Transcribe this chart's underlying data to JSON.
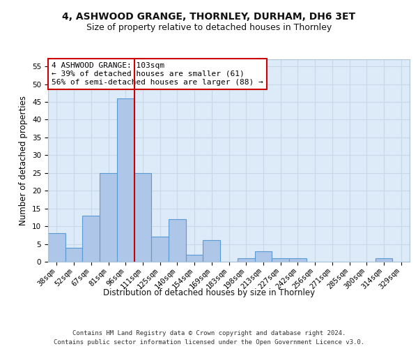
{
  "title1": "4, ASHWOOD GRANGE, THORNLEY, DURHAM, DH6 3ET",
  "title2": "Size of property relative to detached houses in Thornley",
  "xlabel": "Distribution of detached houses by size in Thornley",
  "ylabel": "Number of detached properties",
  "categories": [
    "38sqm",
    "52sqm",
    "67sqm",
    "81sqm",
    "96sqm",
    "111sqm",
    "125sqm",
    "140sqm",
    "154sqm",
    "169sqm",
    "183sqm",
    "198sqm",
    "213sqm",
    "227sqm",
    "242sqm",
    "256sqm",
    "271sqm",
    "285sqm",
    "300sqm",
    "314sqm",
    "329sqm"
  ],
  "values": [
    8,
    4,
    13,
    25,
    46,
    25,
    7,
    12,
    2,
    6,
    0,
    1,
    3,
    1,
    1,
    0,
    0,
    0,
    0,
    1,
    0
  ],
  "bar_color": "#aec6e8",
  "bar_edge_color": "#5b9bd5",
  "grid_color": "#c8d8e8",
  "background_color": "#ddeaf7",
  "vline_x": 4.5,
  "vline_color": "#cc0000",
  "annotation_text": "4 ASHWOOD GRANGE: 103sqm\n← 39% of detached houses are smaller (61)\n56% of semi-detached houses are larger (88) →",
  "annotation_box_color": "#ffffff",
  "annotation_box_edge": "#cc0000",
  "ylim": [
    0,
    57
  ],
  "yticks": [
    0,
    5,
    10,
    15,
    20,
    25,
    30,
    35,
    40,
    45,
    50,
    55
  ],
  "footer_line1": "Contains HM Land Registry data © Crown copyright and database right 2024.",
  "footer_line2": "Contains public sector information licensed under the Open Government Licence v3.0.",
  "title1_fontsize": 10,
  "title2_fontsize": 9,
  "tick_fontsize": 7.5,
  "ylabel_fontsize": 8.5,
  "xlabel_fontsize": 8.5,
  "annotation_fontsize": 8,
  "footer_fontsize": 6.5
}
